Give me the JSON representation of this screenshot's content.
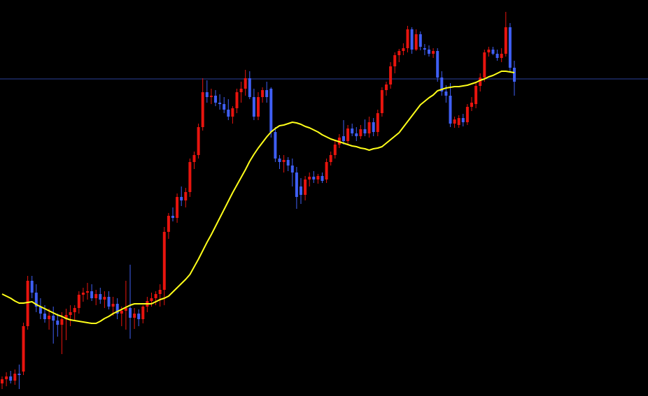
{
  "chart_data": {
    "type": "candlestick",
    "ylim": [
      0,
      567
    ],
    "up_color": "#e8140e",
    "down_color": "#3f5ff5",
    "hline": {
      "value": 454,
      "color": "#2b3f9a"
    },
    "ma": {
      "color": "#ffff1a",
      "values": [
        146,
        143,
        140,
        136,
        133,
        133,
        134,
        135,
        131,
        128,
        125,
        122,
        119,
        116,
        114,
        111,
        109,
        108,
        107,
        106,
        105,
        104,
        104,
        107,
        111,
        114,
        118,
        121,
        124,
        127,
        130,
        132,
        132,
        132,
        132,
        132,
        135,
        138,
        140,
        143,
        149,
        155,
        161,
        167,
        174,
        185,
        196,
        208,
        220,
        231,
        243,
        255,
        267,
        279,
        291,
        302,
        313,
        324,
        336,
        346,
        355,
        363,
        371,
        378,
        383,
        387,
        388,
        390,
        392,
        391,
        389,
        386,
        384,
        381,
        378,
        374,
        371,
        368,
        366,
        364,
        362,
        360,
        358,
        357,
        355,
        354,
        352,
        354,
        355,
        357,
        362,
        367,
        372,
        377,
        385,
        393,
        401,
        409,
        417,
        422,
        427,
        431,
        437,
        439,
        441,
        442,
        443,
        443,
        444,
        445,
        447,
        449,
        452,
        454,
        457,
        459,
        462,
        465,
        465,
        464,
        463
      ]
    },
    "open": [
      18,
      24,
      28,
      22,
      32,
      35,
      100,
      165,
      148,
      128,
      118,
      110,
      115,
      108,
      102,
      110,
      116,
      120,
      126,
      145,
      148,
      150,
      140,
      146,
      138,
      142,
      128,
      132,
      118,
      122,
      126,
      112,
      118,
      110,
      128,
      136,
      140,
      146,
      152,
      235,
      258,
      255,
      285,
      280,
      292,
      335,
      345,
      385,
      435,
      428,
      430,
      420,
      418,
      410,
      400,
      412,
      435,
      440,
      455,
      428,
      400,
      428,
      438,
      440,
      378,
      340,
      335,
      338,
      330,
      320,
      300,
      288,
      310,
      314,
      310,
      315,
      310,
      335,
      345,
      360,
      372,
      365,
      383,
      376,
      372,
      382,
      376,
      392,
      378,
      405,
      438,
      446,
      472,
      488,
      494,
      498,
      525,
      496,
      518,
      498,
      496,
      490,
      494,
      456,
      436,
      430,
      390,
      388,
      398,
      392,
      414,
      418,
      444,
      456,
      492,
      496,
      490,
      484,
      490,
      528,
      470
    ],
    "high": [
      28,
      34,
      36,
      38,
      45,
      105,
      172,
      172,
      160,
      140,
      130,
      125,
      128,
      118,
      120,
      125,
      130,
      130,
      150,
      155,
      162,
      160,
      152,
      155,
      150,
      150,
      142,
      140,
      128,
      165,
      188,
      126,
      124,
      130,
      142,
      148,
      150,
      160,
      242,
      262,
      270,
      290,
      300,
      298,
      340,
      350,
      390,
      455,
      452,
      440,
      438,
      432,
      428,
      425,
      415,
      440,
      450,
      467,
      465,
      440,
      435,
      442,
      450,
      442,
      385,
      345,
      345,
      342,
      340,
      328,
      312,
      315,
      320,
      322,
      318,
      320,
      340,
      350,
      365,
      375,
      395,
      388,
      390,
      385,
      388,
      396,
      400,
      398,
      410,
      442,
      450,
      478,
      492,
      497,
      505,
      530,
      528,
      525,
      522,
      504,
      502,
      498,
      498,
      465,
      445,
      448,
      400,
      402,
      404,
      418,
      428,
      448,
      462,
      496,
      500,
      500,
      496,
      498,
      550,
      534,
      480
    ],
    "low": [
      10,
      14,
      18,
      16,
      10,
      30,
      95,
      140,
      120,
      110,
      105,
      95,
      75,
      85,
      60,
      80,
      100,
      108,
      118,
      135,
      138,
      136,
      130,
      132,
      126,
      124,
      115,
      110,
      100,
      95,
      82,
      96,
      100,
      104,
      120,
      128,
      130,
      128,
      130,
      225,
      250,
      248,
      272,
      270,
      285,
      325,
      340,
      380,
      420,
      418,
      415,
      410,
      405,
      395,
      390,
      405,
      420,
      430,
      425,
      395,
      395,
      420,
      420,
      370,
      335,
      325,
      320,
      322,
      300,
      268,
      275,
      280,
      300,
      305,
      304,
      305,
      305,
      330,
      340,
      355,
      360,
      360,
      372,
      365,
      368,
      372,
      370,
      372,
      372,
      400,
      430,
      440,
      462,
      478,
      488,
      492,
      490,
      494,
      495,
      488,
      486,
      484,
      450,
      430,
      420,
      385,
      384,
      384,
      386,
      388,
      408,
      412,
      436,
      450,
      486,
      488,
      480,
      478,
      486,
      465,
      430
    ],
    "close": [
      24,
      28,
      22,
      32,
      30,
      100,
      165,
      148,
      128,
      118,
      110,
      115,
      108,
      102,
      110,
      116,
      120,
      126,
      145,
      148,
      150,
      140,
      146,
      138,
      142,
      128,
      132,
      118,
      122,
      126,
      112,
      118,
      110,
      128,
      136,
      140,
      146,
      152,
      235,
      258,
      255,
      285,
      280,
      292,
      335,
      345,
      385,
      435,
      428,
      430,
      420,
      418,
      410,
      400,
      412,
      435,
      440,
      455,
      428,
      400,
      428,
      438,
      428,
      378,
      340,
      335,
      338,
      330,
      320,
      285,
      288,
      310,
      314,
      310,
      315,
      308,
      335,
      345,
      360,
      370,
      365,
      383,
      376,
      372,
      382,
      376,
      392,
      378,
      405,
      438,
      446,
      472,
      488,
      494,
      498,
      525,
      496,
      518,
      500,
      496,
      490,
      494,
      456,
      436,
      430,
      390,
      396,
      398,
      392,
      414,
      420,
      444,
      456,
      492,
      496,
      490,
      484,
      490,
      528,
      470,
      450
    ]
  }
}
